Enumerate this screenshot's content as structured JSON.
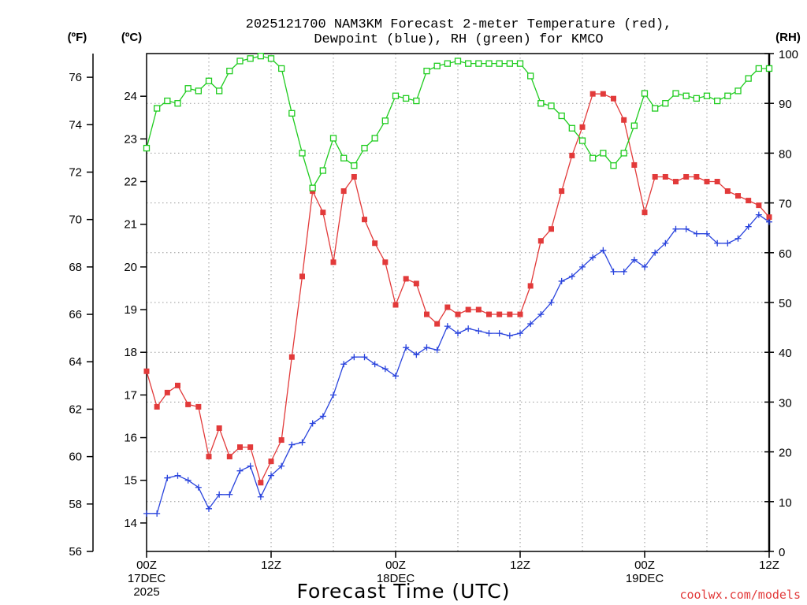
{
  "title_lines": [
    "2025121700 NAM3KM Forecast 2-meter Temperature (red),",
    "Dewpoint (blue), RH (green) for KMCO"
  ],
  "units": {
    "left_f": "(ºF)",
    "left_c": "(ºC)",
    "right_rh": "(RH)"
  },
  "credit": "coolwx.com/models",
  "colors": {
    "temperature": "#e23a3a",
    "dewpoint": "#2a44dd",
    "rh": "#1fcc1f",
    "grid": "#9a9a9a"
  },
  "chart_data": {
    "type": "line",
    "title": "2025121700 NAM3KM Forecast 2-meter Temperature (red), Dewpoint (blue), RH (green) for KMCO",
    "xlabel": "Forecast Time (UTC)",
    "x_unit": "forecast hour",
    "x_range": [
      0,
      60
    ],
    "x_tick_hours": [
      0,
      12,
      24,
      36,
      48,
      60
    ],
    "x_tick_labels": [
      [
        "00Z",
        "17DEC",
        "2025"
      ],
      [
        "12Z"
      ],
      [
        "00Z",
        "18DEC"
      ],
      [
        "12Z"
      ],
      [
        "00Z",
        "19DEC"
      ],
      [
        "12Z"
      ]
    ],
    "y_left_f": {
      "label": "(ºF)",
      "range": [
        56,
        77
      ],
      "ticks": [
        56,
        58,
        60,
        62,
        64,
        66,
        68,
        70,
        72,
        74,
        76
      ]
    },
    "y_left_c": {
      "label": "(ºC)",
      "ticks": [
        14,
        15,
        16,
        17,
        18,
        19,
        20,
        21,
        22,
        23,
        24
      ]
    },
    "y_right": {
      "label": "(RH)",
      "range": [
        0,
        100
      ],
      "ticks": [
        0,
        10,
        20,
        30,
        40,
        50,
        60,
        70,
        80,
        90,
        100
      ]
    },
    "grid": true,
    "x": [
      0,
      1,
      2,
      3,
      4,
      5,
      6,
      7,
      8,
      9,
      10,
      11,
      12,
      13,
      14,
      15,
      16,
      17,
      18,
      19,
      20,
      21,
      22,
      23,
      24,
      25,
      26,
      27,
      28,
      29,
      30,
      31,
      32,
      33,
      34,
      35,
      36,
      37,
      38,
      39,
      40,
      41,
      42,
      43,
      44,
      45,
      46,
      47,
      48,
      49,
      50,
      51,
      52,
      53,
      54,
      55,
      56,
      57,
      58,
      59,
      60
    ],
    "series": [
      {
        "key": "temperature",
        "axis": "F",
        "marker": "filled-square",
        "values": [
          63.6,
          62.1,
          62.7,
          63.0,
          62.2,
          62.1,
          60.0,
          61.2,
          60.0,
          60.4,
          60.4,
          58.9,
          59.8,
          60.7,
          64.2,
          67.6,
          71.2,
          70.3,
          68.2,
          71.2,
          71.8,
          70.0,
          69.0,
          68.2,
          66.4,
          67.5,
          67.3,
          66.0,
          65.6,
          66.3,
          66.0,
          66.2,
          66.2,
          66.0,
          66.0,
          66.0,
          66.0,
          67.2,
          69.1,
          69.6,
          71.2,
          72.7,
          73.9,
          75.3,
          75.3,
          75.1,
          74.2,
          72.3,
          70.3,
          71.8,
          71.8,
          71.6,
          71.8,
          71.8,
          71.6,
          71.6,
          71.2,
          71.0,
          70.8,
          70.6,
          70.1
        ]
      },
      {
        "key": "dewpoint",
        "axis": "F",
        "marker": "plus",
        "values": [
          57.6,
          57.6,
          59.1,
          59.2,
          59.0,
          58.7,
          57.8,
          58.4,
          58.4,
          59.4,
          59.6,
          58.3,
          59.2,
          59.6,
          60.5,
          60.6,
          61.4,
          61.7,
          62.6,
          63.9,
          64.2,
          64.2,
          63.9,
          63.7,
          63.4,
          64.6,
          64.3,
          64.6,
          64.5,
          65.5,
          65.2,
          65.4,
          65.3,
          65.2,
          65.2,
          65.1,
          65.2,
          65.6,
          66.0,
          66.5,
          67.4,
          67.6,
          68.0,
          68.4,
          68.7,
          67.8,
          67.8,
          68.3,
          68.0,
          68.6,
          69.0,
          69.6,
          69.6,
          69.4,
          69.4,
          69.0,
          69.0,
          69.2,
          69.7,
          70.2,
          69.9
        ]
      },
      {
        "key": "rh",
        "axis": "RH",
        "marker": "open-square",
        "values": [
          81,
          89,
          90.5,
          90,
          93,
          92.5,
          94.5,
          92.5,
          96.5,
          98.5,
          99,
          99.5,
          99,
          97,
          88,
          80,
          73,
          76.5,
          83,
          79,
          77.5,
          81,
          83,
          86.5,
          91.5,
          91,
          90.5,
          96.5,
          97.5,
          98,
          98.5,
          98,
          98,
          98,
          98,
          98,
          98,
          95.5,
          90,
          89.5,
          87.5,
          85,
          82.5,
          79,
          80,
          77.5,
          80,
          85.5,
          92,
          89,
          90,
          92,
          91.5,
          91,
          91.5,
          90.5,
          91.5,
          92.5,
          95,
          97,
          97
        ]
      }
    ]
  }
}
